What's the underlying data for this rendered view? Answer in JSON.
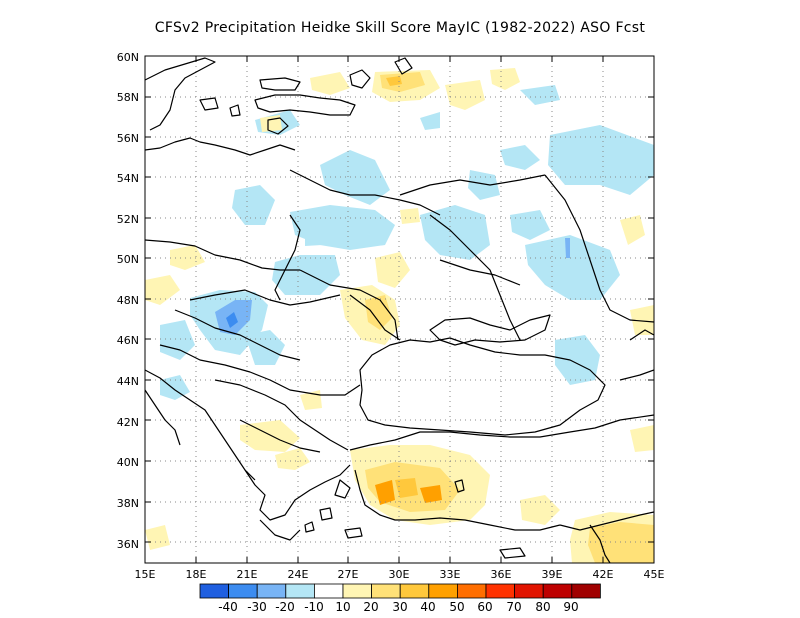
{
  "map": {
    "title": "CFSv2  Precipitation Heidke Skill Score MayIC (1982-2022) ASO Fcst",
    "lon_ticks": [
      "15E",
      "18E",
      "21E",
      "24E",
      "27E",
      "30E",
      "33E",
      "36E",
      "39E",
      "42E",
      "45E"
    ],
    "lat_ticks": [
      "36N",
      "38N",
      "40N",
      "42N",
      "44N",
      "46N",
      "48N",
      "50N",
      "52N",
      "54N",
      "56N",
      "58N",
      "60N"
    ],
    "extent": {
      "lon": [
        15,
        45
      ],
      "lat": [
        35,
        60
      ]
    },
    "grid": "dotted",
    "colorbar": {
      "labels": [
        "-40",
        "-30",
        "-20",
        "-10",
        "10",
        "20",
        "30",
        "40",
        "50",
        "60",
        "70",
        "80",
        "90"
      ],
      "colors": [
        "#1f5fe0",
        "#3c8cf0",
        "#78b4f5",
        "#b4e6f5",
        "#ffffff",
        "#fff5b4",
        "#ffe178",
        "#ffc83c",
        "#ffa000",
        "#ff6e00",
        "#ff3200",
        "#e11400",
        "#be0000",
        "#a00000"
      ]
    }
  }
}
